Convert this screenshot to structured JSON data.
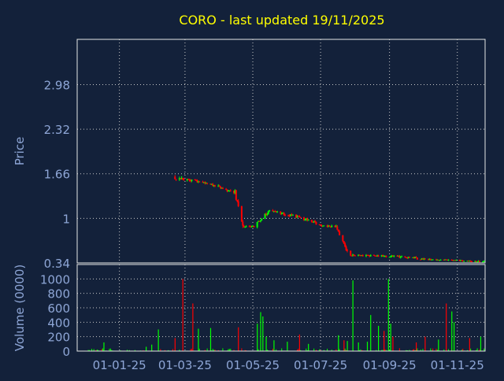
{
  "chart_data": [
    {
      "type": "candlestick",
      "title": "CORO - last updated 19/11/2025",
      "ylabel": "Price",
      "ytick_labels": [
        "2.98",
        "2.32",
        "1.66",
        "1",
        "0.34"
      ],
      "yticks": [
        2.98,
        2.32,
        1.66,
        1.0,
        0.34
      ],
      "ylim": [
        0.34,
        3.65
      ],
      "grid": true,
      "colors": {
        "background": "#13213a",
        "axes": "#e6e6e6",
        "grid": "#c8c8c8",
        "title": "#ffff00",
        "labels": "#8ea6d6",
        "up": "#00ff00",
        "down": "#ff0000"
      },
      "segments": [
        {
          "from": "2025-02-20",
          "to": "2025-02-28",
          "start": 1.6,
          "end": 1.58,
          "spread": 0.05
        },
        {
          "from": "2025-03-01",
          "to": "2025-03-25",
          "start": 1.57,
          "end": 1.52,
          "spread": 0.04
        },
        {
          "from": "2025-03-26",
          "to": "2025-04-14",
          "start": 1.5,
          "end": 1.38,
          "spread": 0.04
        },
        {
          "from": "2025-04-15",
          "to": "2025-04-22",
          "start": 1.38,
          "end": 0.86,
          "spread": 0.08
        },
        {
          "from": "2025-04-23",
          "to": "2025-05-03",
          "start": 0.88,
          "end": 0.88,
          "spread": 0.03
        },
        {
          "from": "2025-05-04",
          "to": "2025-05-18",
          "start": 0.92,
          "end": 1.15,
          "spread": 0.04
        },
        {
          "from": "2025-05-19",
          "to": "2025-06-12",
          "start": 1.1,
          "end": 1.02,
          "spread": 0.04
        },
        {
          "from": "2025-06-13",
          "to": "2025-06-26",
          "start": 1.0,
          "end": 0.95,
          "spread": 0.04
        },
        {
          "from": "2025-06-27",
          "to": "2025-07-14",
          "start": 0.9,
          "end": 0.88,
          "spread": 0.03
        },
        {
          "from": "2025-07-15",
          "to": "2025-07-26",
          "start": 0.86,
          "end": 0.46,
          "spread": 0.05
        },
        {
          "from": "2025-07-27",
          "to": "2025-08-27",
          "start": 0.46,
          "end": 0.44,
          "spread": 0.03
        },
        {
          "from": "2025-08-28",
          "to": "2025-09-25",
          "start": 0.44,
          "end": 0.42,
          "spread": 0.03
        },
        {
          "from": "2025-09-26",
          "to": "2025-11-25",
          "start": 0.4,
          "end": 0.36,
          "spread": 0.02
        }
      ]
    },
    {
      "type": "bar",
      "ylabel": "Volume (0000)",
      "ytick_labels": [
        "1000",
        "800",
        "600",
        "400",
        "200",
        "0"
      ],
      "yticks": [
        1000,
        800,
        600,
        400,
        200,
        0
      ],
      "ylim": [
        0,
        1200
      ],
      "grid": true,
      "xtick_labels": [
        "01-01-25",
        "01-03-25",
        "01-05-25",
        "01-07-25",
        "01-09-25",
        "01-11-25"
      ],
      "xticks": [
        "2025-01-01",
        "2025-03-01",
        "2025-05-01",
        "2025-07-01",
        "2025-09-01",
        "2025-11-01"
      ],
      "xlim": [
        "2024-11-24",
        "2025-11-26"
      ],
      "base_volume": 40,
      "spikes": [
        {
          "date": "2024-12-07",
          "value": 30,
          "color": "up"
        },
        {
          "date": "2024-12-18",
          "value": 120,
          "color": "up"
        },
        {
          "date": "2025-01-25",
          "value": 60,
          "color": "up"
        },
        {
          "date": "2025-01-30",
          "value": 90,
          "color": "up"
        },
        {
          "date": "2025-02-05",
          "value": 300,
          "color": "up"
        },
        {
          "date": "2025-02-20",
          "value": 180,
          "color": "down"
        },
        {
          "date": "2025-02-27",
          "value": 1000,
          "color": "down"
        },
        {
          "date": "2025-03-08",
          "value": 660,
          "color": "down"
        },
        {
          "date": "2025-03-13",
          "value": 310,
          "color": "up"
        },
        {
          "date": "2025-03-24",
          "value": 320,
          "color": "up"
        },
        {
          "date": "2025-04-18",
          "value": 330,
          "color": "down"
        },
        {
          "date": "2025-05-05",
          "value": 380,
          "color": "up"
        },
        {
          "date": "2025-05-08",
          "value": 540,
          "color": "up"
        },
        {
          "date": "2025-05-10",
          "value": 480,
          "color": "up"
        },
        {
          "date": "2025-05-13",
          "value": 200,
          "color": "up"
        },
        {
          "date": "2025-05-20",
          "value": 150,
          "color": "up"
        },
        {
          "date": "2025-06-01",
          "value": 130,
          "color": "up"
        },
        {
          "date": "2025-06-12",
          "value": 230,
          "color": "down"
        },
        {
          "date": "2025-06-20",
          "value": 100,
          "color": "up"
        },
        {
          "date": "2025-07-17",
          "value": 220,
          "color": "up"
        },
        {
          "date": "2025-07-22",
          "value": 150,
          "color": "down"
        },
        {
          "date": "2025-07-25",
          "value": 140,
          "color": "up"
        },
        {
          "date": "2025-07-30",
          "value": 980,
          "color": "up"
        },
        {
          "date": "2025-08-04",
          "value": 120,
          "color": "up"
        },
        {
          "date": "2025-08-12",
          "value": 130,
          "color": "up"
        },
        {
          "date": "2025-08-15",
          "value": 500,
          "color": "up"
        },
        {
          "date": "2025-08-22",
          "value": 350,
          "color": "up"
        },
        {
          "date": "2025-08-27",
          "value": 280,
          "color": "down"
        },
        {
          "date": "2025-08-31",
          "value": 1000,
          "color": "up"
        },
        {
          "date": "2025-09-02",
          "value": 380,
          "color": "up"
        },
        {
          "date": "2025-09-04",
          "value": 200,
          "color": "down"
        },
        {
          "date": "2025-09-25",
          "value": 120,
          "color": "down"
        },
        {
          "date": "2025-10-03",
          "value": 200,
          "color": "down"
        },
        {
          "date": "2025-10-15",
          "value": 160,
          "color": "up"
        },
        {
          "date": "2025-10-22",
          "value": 660,
          "color": "down"
        },
        {
          "date": "2025-10-27",
          "value": 550,
          "color": "up"
        },
        {
          "date": "2025-10-29",
          "value": 400,
          "color": "up"
        },
        {
          "date": "2025-11-12",
          "value": 180,
          "color": "down"
        },
        {
          "date": "2025-11-22",
          "value": 200,
          "color": "up"
        }
      ]
    }
  ]
}
